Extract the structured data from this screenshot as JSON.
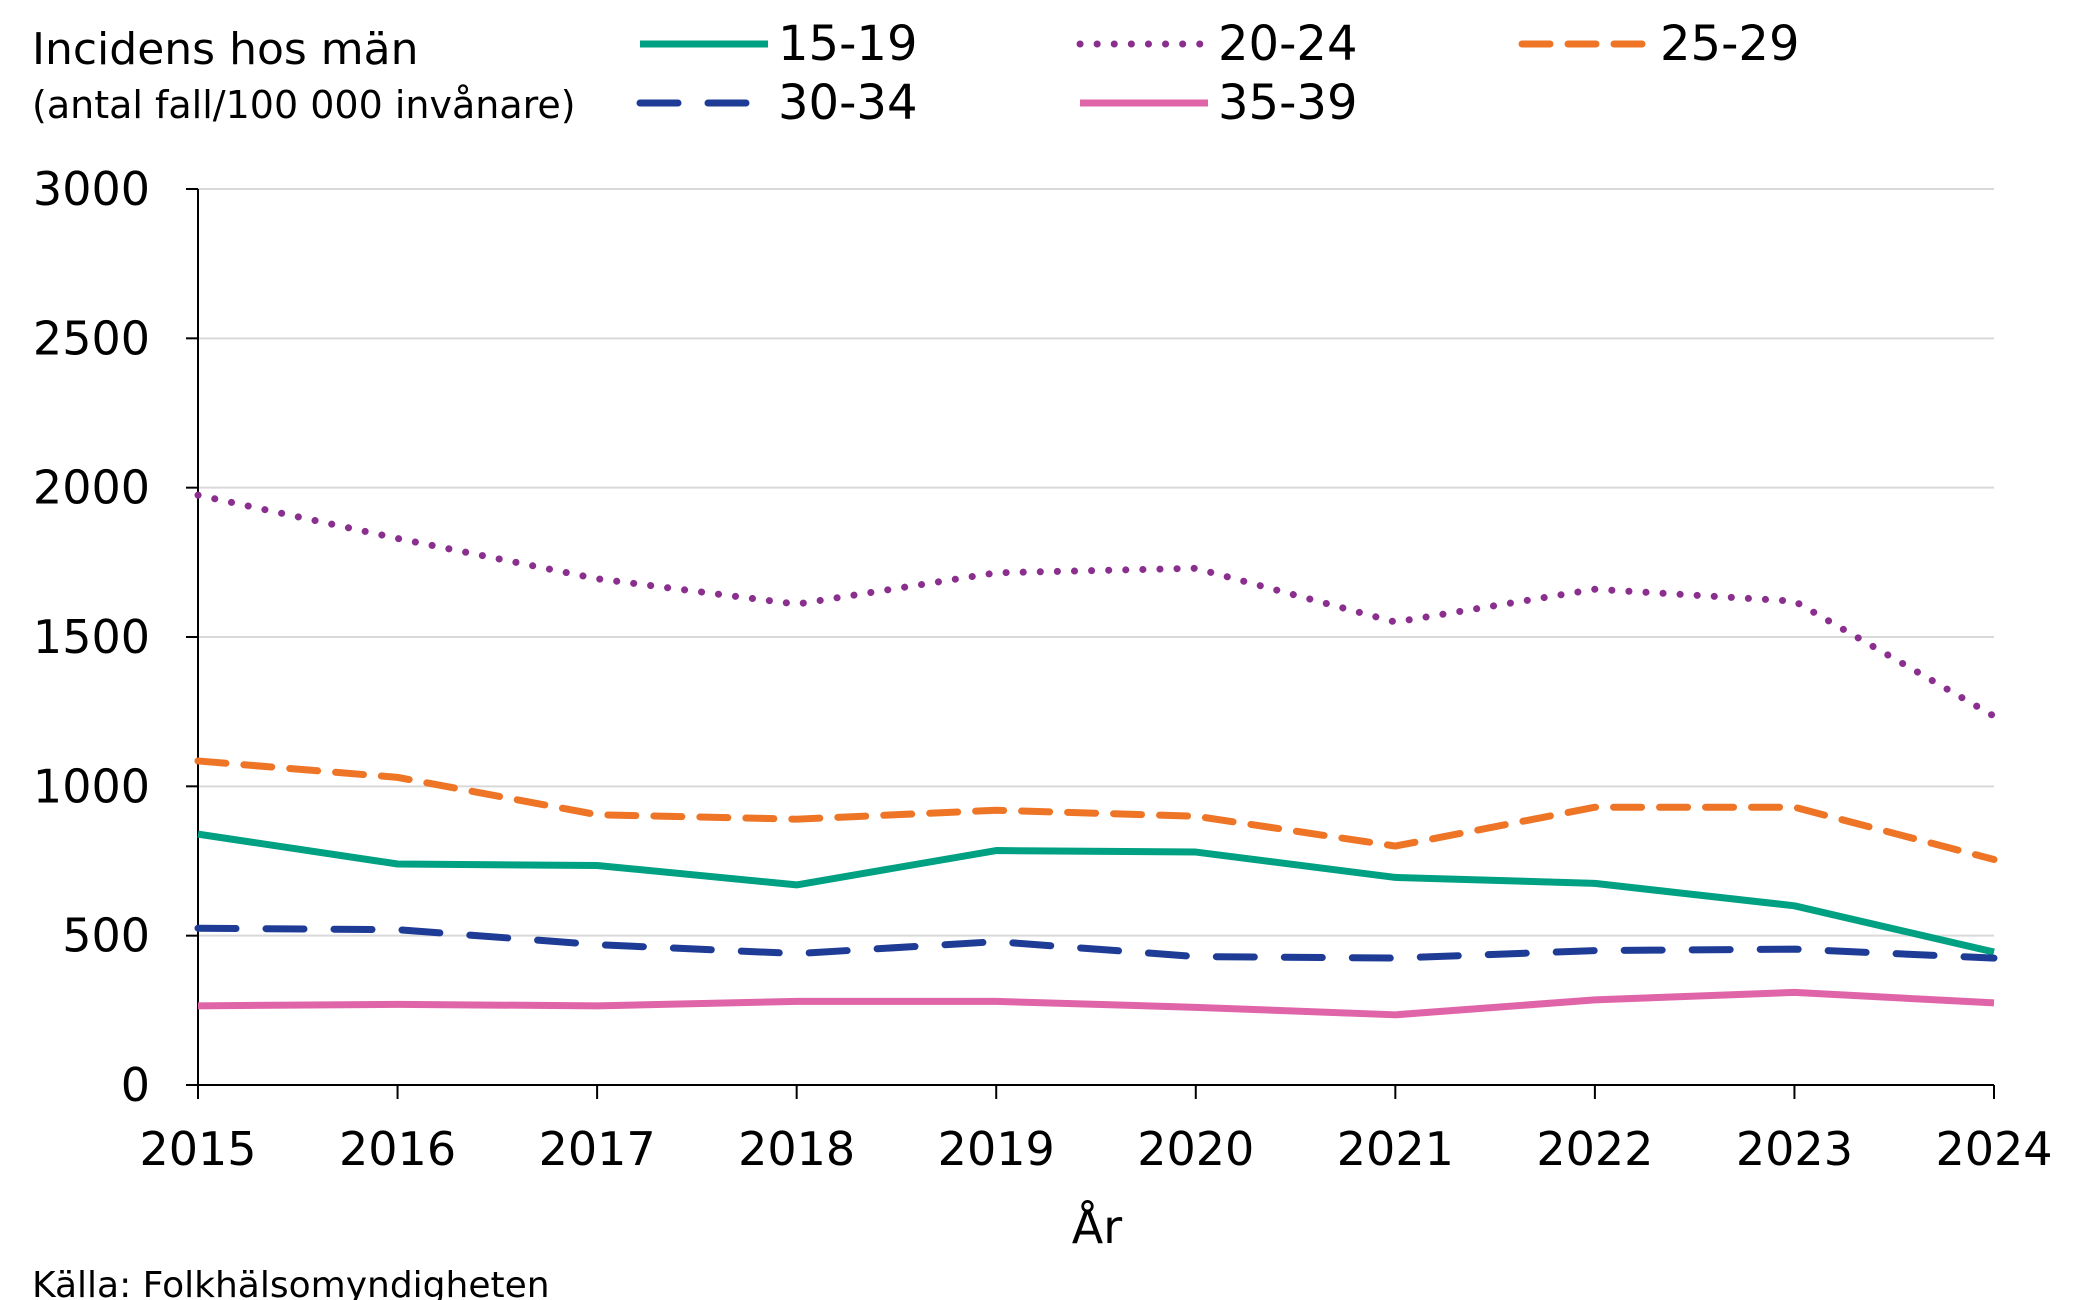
{
  "chart_data": {
    "type": "line",
    "title": "",
    "ylabel_main": "Incidens hos män",
    "ylabel_sub": "(antal fall/100 000 invånare)",
    "xlabel": "År",
    "source": "Källa: Folkhälsomyndigheten",
    "ylim": [
      0,
      3000
    ],
    "yticks": [
      0,
      500,
      1000,
      1500,
      2000,
      2500,
      3000
    ],
    "x": [
      "2015",
      "2016",
      "2017",
      "2018",
      "2019",
      "2020",
      "2021",
      "2022",
      "2023",
      "2024"
    ],
    "grid": true,
    "legend_position": "top",
    "series": [
      {
        "name": "15-19",
        "color": "#00A082",
        "style": "solid",
        "values": [
          840,
          740,
          735,
          670,
          785,
          780,
          695,
          675,
          600,
          445
        ]
      },
      {
        "name": "20-24",
        "color": "#8B2F8F",
        "style": "dotted",
        "values": [
          1975,
          1830,
          1695,
          1610,
          1715,
          1730,
          1550,
          1660,
          1620,
          1235
        ]
      },
      {
        "name": "25-29",
        "color": "#EE7426",
        "style": "dashed",
        "values": [
          1085,
          1030,
          905,
          890,
          920,
          900,
          800,
          930,
          930,
          755
        ]
      },
      {
        "name": "30-34",
        "color": "#1E3C96",
        "style": "longdash",
        "values": [
          525,
          520,
          470,
          440,
          480,
          430,
          425,
          450,
          455,
          425
        ]
      },
      {
        "name": "35-39",
        "color": "#E064A8",
        "style": "solid",
        "values": [
          265,
          270,
          265,
          280,
          280,
          260,
          235,
          285,
          310,
          275
        ]
      }
    ]
  }
}
